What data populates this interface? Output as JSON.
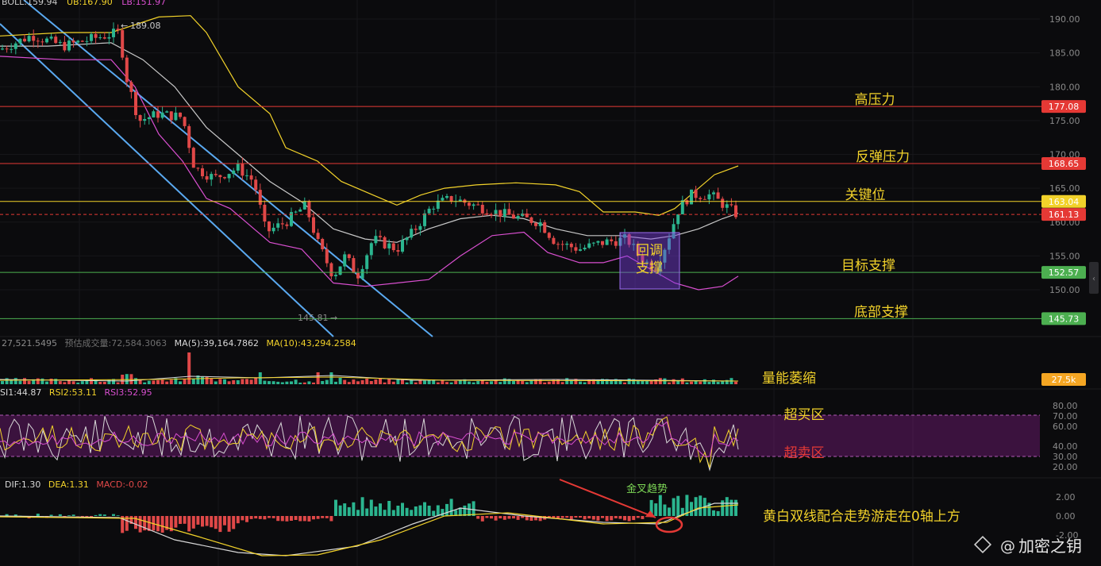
{
  "header": {
    "boll": [
      {
        "text": "BOLL:159.94",
        "color": "#c8c8c8"
      },
      {
        "text": "UB:167.90",
        "color": "#f2d22a"
      },
      {
        "text": "LB:151.97",
        "color": "#d94fd0"
      }
    ],
    "volume": [
      {
        "text": "27,521.5495",
        "color": "#8a8a8a"
      },
      {
        "text": "预估成交量:72,584.3063",
        "color": "#6f6f6f"
      },
      {
        "text": "MA(5):39,164.7862",
        "color": "#d8d8d8"
      },
      {
        "text": "MA(10):43,294.2584",
        "color": "#f2d22a"
      }
    ],
    "rsi": [
      {
        "text": "SI1:44.87",
        "color": "#d8d8d8"
      },
      {
        "text": "RSI2:53.11",
        "color": "#f2d22a"
      },
      {
        "text": "RSI3:52.95",
        "color": "#d94fd0"
      }
    ],
    "macd": [
      {
        "text": "DIF:1.30",
        "color": "#d8d8d8"
      },
      {
        "text": "DEA:1.31",
        "color": "#f2d22a"
      },
      {
        "text": "MACD:-0.02",
        "color": "#e04848"
      }
    ]
  },
  "chart_data": {
    "type": "candlestick",
    "ylim": [
      145,
      192.5
    ],
    "price_ticks": [
      "190.00",
      "185.00",
      "180.00",
      "175.00",
      "170.00",
      "165.00",
      "160.00",
      "155.00",
      "150.00"
    ],
    "rsi_ticks": [
      "80.00",
      "70.00",
      "60.00",
      "40.00",
      "30.00",
      "20.00"
    ],
    "macd_ticks": [
      "2.00",
      "0.00",
      "-2.00"
    ],
    "high_marker": "189.08",
    "low_marker": "145.81",
    "levels": [
      {
        "label": "高压力",
        "price": 177.08,
        "badge": "177.08",
        "color": "#e53935"
      },
      {
        "label": "反弹压力",
        "price": 168.65,
        "badge": "168.65",
        "color": "#e53935"
      },
      {
        "label": "关键位",
        "price": 163.04,
        "badge": "163.04",
        "color": "#f2d22a"
      },
      {
        "label": "",
        "price": 161.13,
        "badge": "161.13",
        "color": "#e53935"
      },
      {
        "label": "目标支撑",
        "price": 152.57,
        "badge": "152.57",
        "color": "#4caf50"
      },
      {
        "label": "底部支撑",
        "price": 145.73,
        "badge": "145.73",
        "color": "#4caf50"
      }
    ],
    "pullback_box": [
      "回调",
      "支撑"
    ],
    "volume_label": "量能萎缩",
    "volume_badge": "27.5k",
    "rsi_overbought": "超买区",
    "rsi_oversold": "超卖区",
    "golden_cross": "金叉趋势",
    "macd_comment": "黄白双线配合走势游走在0轴上方"
  },
  "watermark": "加密之钥"
}
